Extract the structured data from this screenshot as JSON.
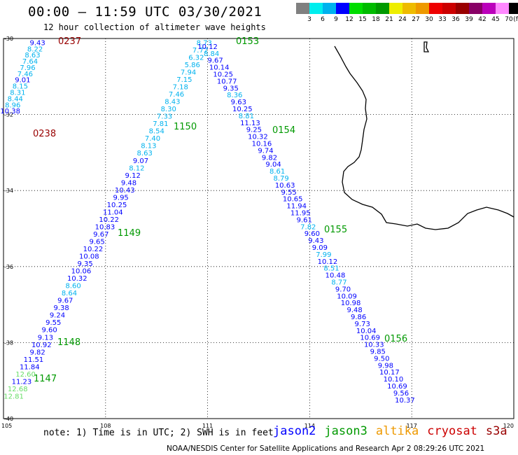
{
  "header": {
    "title": "00:00 – 11:59 UTC 03/30/2021",
    "subtitle": "12 hour collection of altimeter wave heights"
  },
  "colorbar": {
    "colors": [
      "#808080",
      "#00eeee",
      "#00b2ee",
      "#0000ff",
      "#00dd00",
      "#00bb00",
      "#009900",
      "#eeee00",
      "#eebb00",
      "#ee9900",
      "#ee0000",
      "#cc0000",
      "#990000",
      "#880066",
      "#bb00bb",
      "#ff88ff",
      "#000000"
    ],
    "labels": [
      "3",
      "6",
      "9",
      "12",
      "15",
      "18",
      "21",
      "24",
      "27",
      "30",
      "33",
      "36",
      "39",
      "42",
      "45",
      "70",
      "(ft)"
    ]
  },
  "map": {
    "lat_labels": [
      "-30",
      "-32",
      "-34",
      "-36",
      "-38",
      "-40"
    ],
    "lon_labels": [
      "105",
      "108",
      "111",
      "114",
      "117",
      "120"
    ],
    "lat_range": [
      -40,
      -30
    ],
    "lon_range": [
      105,
      120
    ],
    "track_times": [
      {
        "text": "0237",
        "color": "#990000"
      },
      {
        "text": "0238",
        "color": "#990000"
      },
      {
        "text": "0153",
        "color": "#009900"
      },
      {
        "text": "0154",
        "color": "#009900"
      },
      {
        "text": "0155",
        "color": "#009900"
      },
      {
        "text": "0156",
        "color": "#009900"
      },
      {
        "text": "1150",
        "color": "#009900"
      },
      {
        "text": "1149",
        "color": "#009900"
      },
      {
        "text": "1148",
        "color": "#009900"
      },
      {
        "text": "1147",
        "color": "#009900"
      }
    ],
    "tracks": [
      {
        "name": "cryosat-left",
        "start_lon": 106.0,
        "start_lat": -30.1,
        "end_lon": 105.2,
        "end_lat": -31.9,
        "values": [
          "9.43",
          "8.22",
          "8.63",
          "7.64",
          "7.96",
          "7.46",
          "9.01",
          "8.15",
          "8.31",
          "8.44",
          "8.96",
          "10.38"
        ]
      },
      {
        "name": "jason3-up",
        "start_lon": 105.3,
        "start_lat": -39.4,
        "end_lon": 110.9,
        "end_lat": -30.1,
        "values": [
          "12.81",
          "12.68",
          "11.23",
          "12.60",
          "11.84",
          "11.51",
          "9.82",
          "10.92",
          "9.13",
          "9.60",
          "9.55",
          "9.24",
          "9.38",
          "9.67",
          "8.64",
          "8.60",
          "10.32",
          "10.06",
          "9.35",
          "10.08",
          "10.22",
          "9.65",
          "9.67",
          "10.83",
          "10.22",
          "11.04",
          "10.25",
          "9.95",
          "10.43",
          "9.48",
          "9.12",
          "8.12",
          "9.07",
          "8.63",
          "8.13",
          "7.40",
          "8.54",
          "7.81",
          "7.33",
          "8.30",
          "8.43",
          "7.46",
          "7.18",
          "7.15",
          "7.94",
          "5.86",
          "6.32",
          "7.77",
          "8.73"
        ]
      },
      {
        "name": "jason3-down",
        "start_lon": 111.0,
        "start_lat": -30.2,
        "end_lon": 116.8,
        "end_lat": -39.5,
        "values": [
          "10.12",
          "8.84",
          "9.67",
          "10.14",
          "10.25",
          "10.77",
          "9.35",
          "8.36",
          "9.63",
          "10.25",
          "8.81",
          "11.13",
          "9.25",
          "10.32",
          "10.16",
          "9.74",
          "9.82",
          "9.04",
          "8.61",
          "8.79",
          "10.63",
          "9.55",
          "10.65",
          "11.94",
          "11.95",
          "9.61",
          "7.82",
          "9.60",
          "9.43",
          "9.09",
          "7.99",
          "10.12",
          "8.51",
          "10.48",
          "8.77",
          "9.70",
          "10.09",
          "10.98",
          "9.48",
          "9.86",
          "9.73",
          "10.04",
          "10.69",
          "10.33",
          "9.85",
          "9.50",
          "9.98",
          "10.17",
          "10.10",
          "10.69",
          "9.56",
          "10.37"
        ]
      }
    ]
  },
  "footer": {
    "note": "note: 1) Time is in UTC; 2) SWH is in feet",
    "legend": [
      {
        "name": "jason2",
        "color": "#0000ff"
      },
      {
        "name": "jason3",
        "color": "#009900"
      },
      {
        "name": "altika",
        "color": "#ee9900"
      },
      {
        "name": "cryosat",
        "color": "#cc0000"
      },
      {
        "name": "s3a",
        "color": "#990000"
      }
    ],
    "credit": "NOAA/NESDIS Center for Satellite Applications and Research    Apr  2 08:29:26 UTC 2021"
  }
}
